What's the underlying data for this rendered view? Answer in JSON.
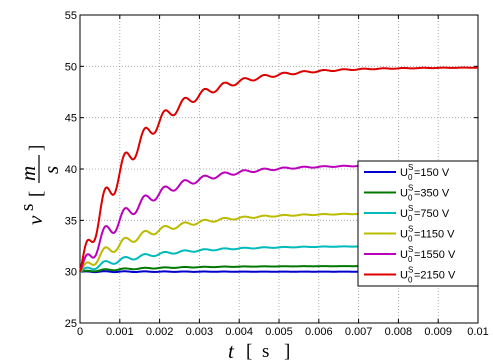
{
  "chart_data": {
    "type": "line",
    "xlabel": {
      "symbol": "t",
      "unit": "s"
    },
    "ylabel": {
      "symbol": "v",
      "superscript": "s",
      "unit_numerator": "m",
      "unit_denominator": "s"
    },
    "xlim": [
      0,
      0.01
    ],
    "ylim": [
      25,
      55
    ],
    "xticks": [
      0,
      0.001,
      0.002,
      0.003,
      0.004,
      0.005,
      0.006,
      0.007,
      0.008,
      0.009,
      0.01
    ],
    "xtick_labels": [
      "0",
      "0.001",
      "0.002",
      "0.003",
      "0.004",
      "0.005",
      "0.006",
      "0.007",
      "0.008",
      "0.009",
      "0.01"
    ],
    "yticks": [
      25,
      30,
      35,
      40,
      45,
      50,
      55
    ],
    "ytick_labels": [
      "25",
      "30",
      "35",
      "40",
      "45",
      "50",
      "55"
    ],
    "grid": true,
    "legend_position": "right",
    "series": [
      {
        "name": "U0S=150 V",
        "label": {
          "base": "U",
          "sup": "S",
          "sub": "0",
          "rest": "=150 V"
        },
        "color": "#0000cc",
        "final": 30.0,
        "ripple": 0.06,
        "tau": 0.0018
      },
      {
        "name": "U0S=350 V",
        "label": {
          "base": "U",
          "sup": "S",
          "sub": "0",
          "rest": "=350 V"
        },
        "color": "#007700",
        "final": 30.55,
        "ripple": 0.1,
        "tau": 0.0018
      },
      {
        "name": "U0S=750 V",
        "label": {
          "base": "U",
          "sup": "S",
          "sub": "0",
          "rest": "=750 V"
        },
        "color": "#00bbbb",
        "final": 32.5,
        "ripple": 0.35,
        "tau": 0.0017
      },
      {
        "name": "U0S=1150 V",
        "label": {
          "base": "U",
          "sup": "S",
          "sub": "0",
          "rest": "=1150 V"
        },
        "color": "#bbbb00",
        "final": 35.7,
        "ripple": 0.7,
        "tau": 0.0016
      },
      {
        "name": "U0S=1550 V",
        "label": {
          "base": "U",
          "sup": "S",
          "sub": "0",
          "rest": "=1550 V"
        },
        "color": "#bb00bb",
        "final": 40.4,
        "ripple": 1.2,
        "tau": 0.0015
      },
      {
        "name": "U0S=2150 V",
        "label": {
          "base": "U",
          "sup": "S",
          "sub": "0",
          "rest": "=2150 V"
        },
        "color": "#dd0000",
        "final": 49.9,
        "ripple": 1.8,
        "tau": 0.0015
      }
    ]
  }
}
